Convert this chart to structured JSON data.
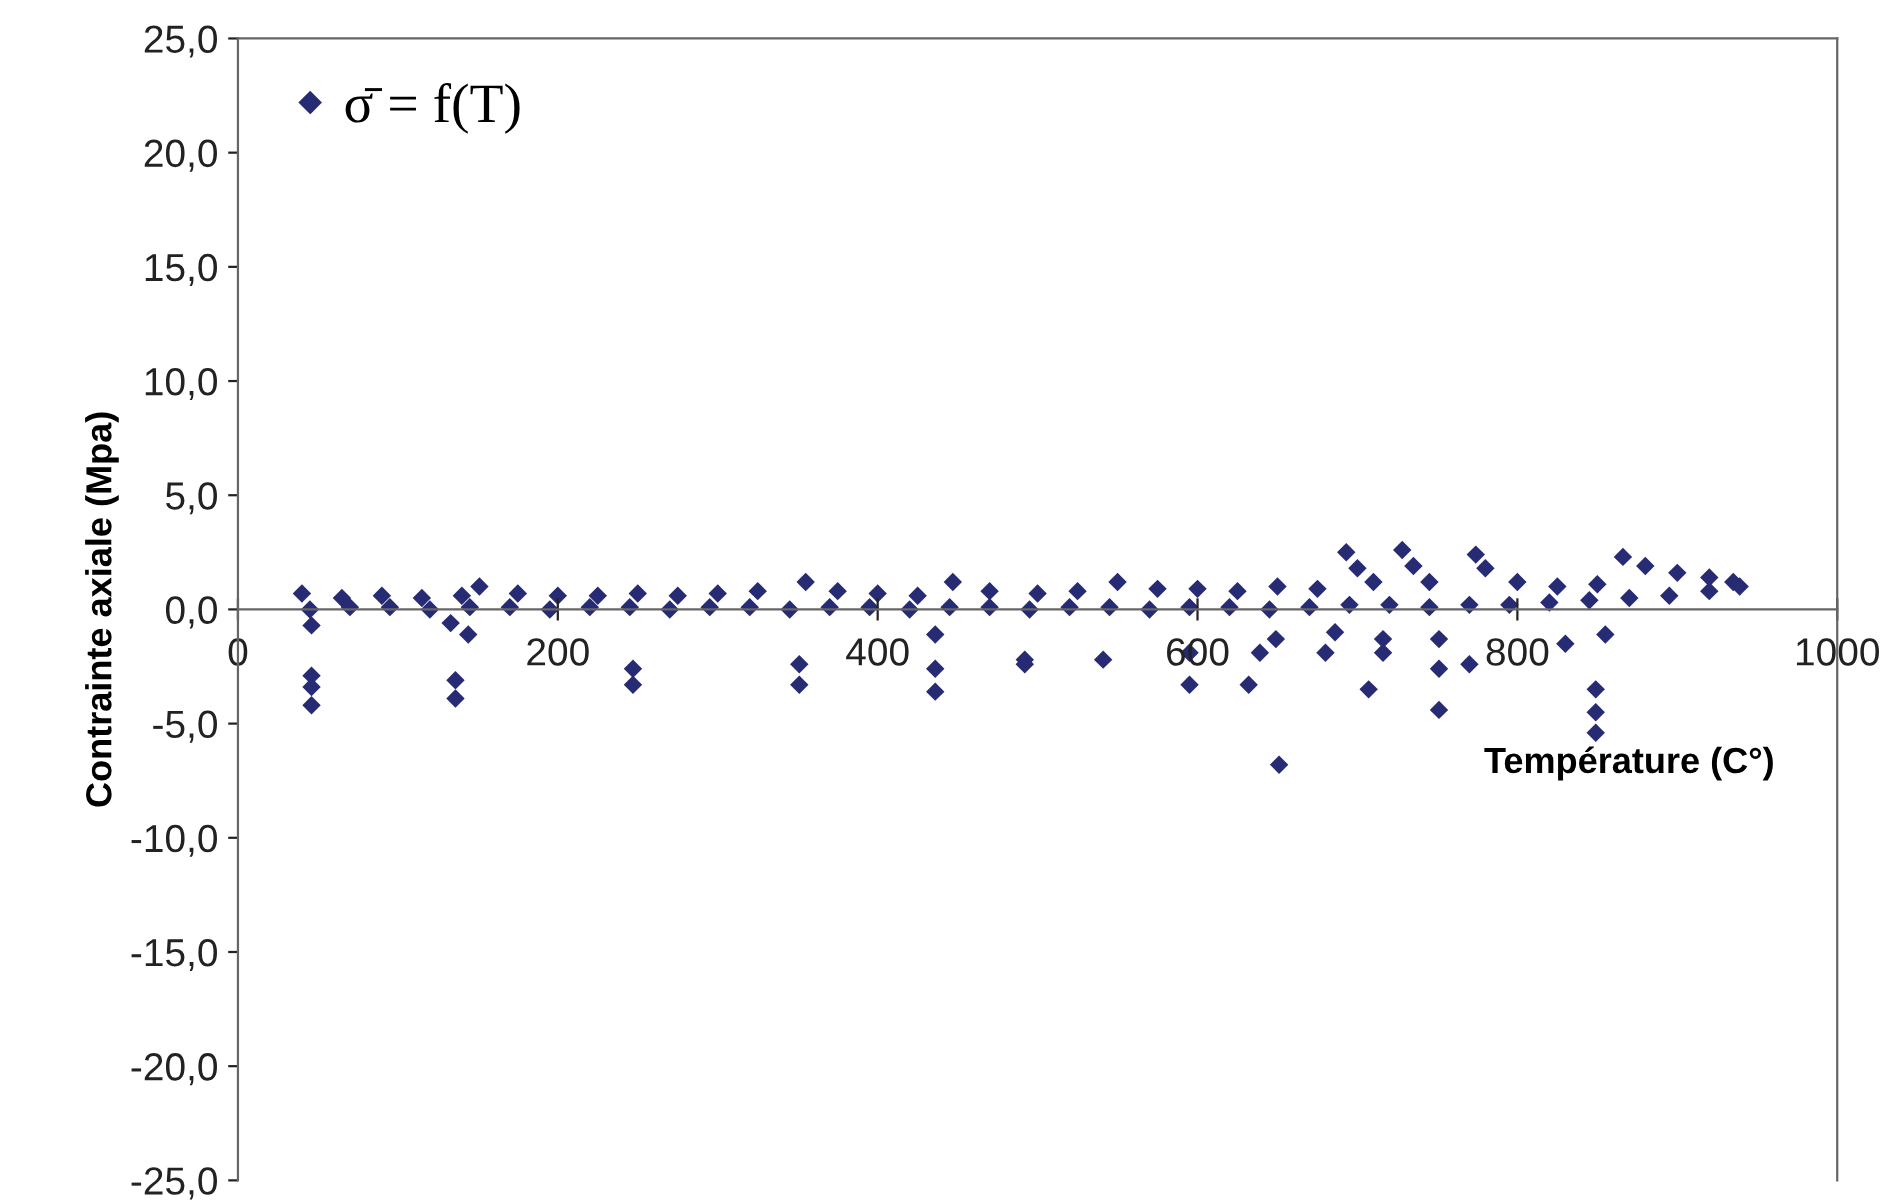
{
  "chart_data": {
    "type": "scatter",
    "xlabel": "Température (C°)",
    "ylabel": "Contrainte axiale (Mpa)",
    "xlim": [
      0,
      1000
    ],
    "ylim": [
      -25,
      25
    ],
    "xticks": [
      0,
      200,
      400,
      600,
      800,
      1000
    ],
    "yticks": [
      {
        "value": -25,
        "label": "-25,0"
      },
      {
        "value": -20,
        "label": "-20,0"
      },
      {
        "value": -15,
        "label": "-15,0"
      },
      {
        "value": -10,
        "label": "-10,0"
      },
      {
        "value": -5,
        "label": "-5,0"
      },
      {
        "value": 0,
        "label": "0,0"
      },
      {
        "value": 5,
        "label": "5,0"
      },
      {
        "value": 10,
        "label": "10,0"
      },
      {
        "value": 15,
        "label": "15,0"
      },
      {
        "value": 20,
        "label": "20,0"
      },
      {
        "value": 25,
        "label": "25,0"
      }
    ],
    "grid": false,
    "legend": "top left",
    "marker": "diamond",
    "series": [
      {
        "name": "σ̄ = f(T)",
        "color": "#262b74",
        "x": [
          40,
          65,
          90,
          115,
          140,
          151,
          175,
          200,
          225,
          250,
          275,
          300,
          325,
          355,
          375,
          400,
          425,
          447,
          470,
          500,
          525,
          550,
          575,
          600,
          625,
          650,
          675,
          693,
          700,
          710,
          728,
          735,
          745,
          774,
          780,
          800,
          825,
          850,
          866,
          880,
          900,
          920,
          935,
          45,
          70,
          95,
          120,
          145,
          170,
          195,
          220,
          245,
          270,
          295,
          320,
          345,
          370,
          395,
          420,
          445,
          470,
          495,
          520,
          545,
          570,
          595,
          620,
          645,
          670,
          695,
          720,
          745,
          770,
          795,
          820,
          845,
          870,
          895,
          920,
          939,
          46,
          46,
          46,
          46,
          133,
          136,
          136,
          144,
          247,
          247,
          351,
          351,
          436,
          436,
          436,
          492,
          492,
          541,
          595,
          595,
          632,
          639,
          649,
          651,
          680,
          686,
          707,
          716,
          716,
          751,
          751,
          751,
          770,
          830,
          855,
          849,
          849,
          849
        ],
        "values": [
          0.7,
          0.5,
          0.6,
          0.5,
          0.6,
          1.0,
          0.7,
          0.6,
          0.6,
          0.7,
          0.6,
          0.7,
          0.8,
          1.2,
          0.8,
          0.7,
          0.6,
          1.2,
          0.8,
          0.7,
          0.8,
          1.2,
          0.9,
          0.9,
          0.8,
          1.0,
          0.9,
          2.5,
          1.8,
          1.2,
          2.6,
          1.9,
          1.2,
          2.4,
          1.8,
          1.2,
          1.0,
          1.1,
          2.3,
          1.9,
          1.6,
          1.4,
          1.2,
          0.0,
          0.1,
          0.1,
          0.0,
          0.1,
          0.1,
          0.0,
          0.1,
          0.1,
          0.0,
          0.1,
          0.1,
          0.0,
          0.1,
          0.1,
          0.0,
          0.1,
          0.1,
          0.0,
          0.1,
          0.1,
          0.0,
          0.1,
          0.1,
          0.0,
          0.1,
          0.2,
          0.2,
          0.1,
          0.2,
          0.2,
          0.3,
          0.4,
          0.5,
          0.6,
          0.8,
          1.0,
          -0.7,
          -2.9,
          -3.4,
          -4.2,
          -0.6,
          -3.1,
          -3.9,
          -1.1,
          -2.6,
          -3.3,
          -2.4,
          -3.3,
          -1.1,
          -2.6,
          -3.6,
          -2.2,
          -2.4,
          -2.2,
          -1.9,
          -3.3,
          -3.3,
          -1.9,
          -1.3,
          -6.8,
          -1.9,
          -1.0,
          -3.5,
          -1.9,
          -1.3,
          -1.3,
          -2.6,
          -4.4,
          -2.4,
          -1.5,
          -1.1,
          -3.5,
          -4.5,
          -5.4
        ]
      }
    ]
  }
}
